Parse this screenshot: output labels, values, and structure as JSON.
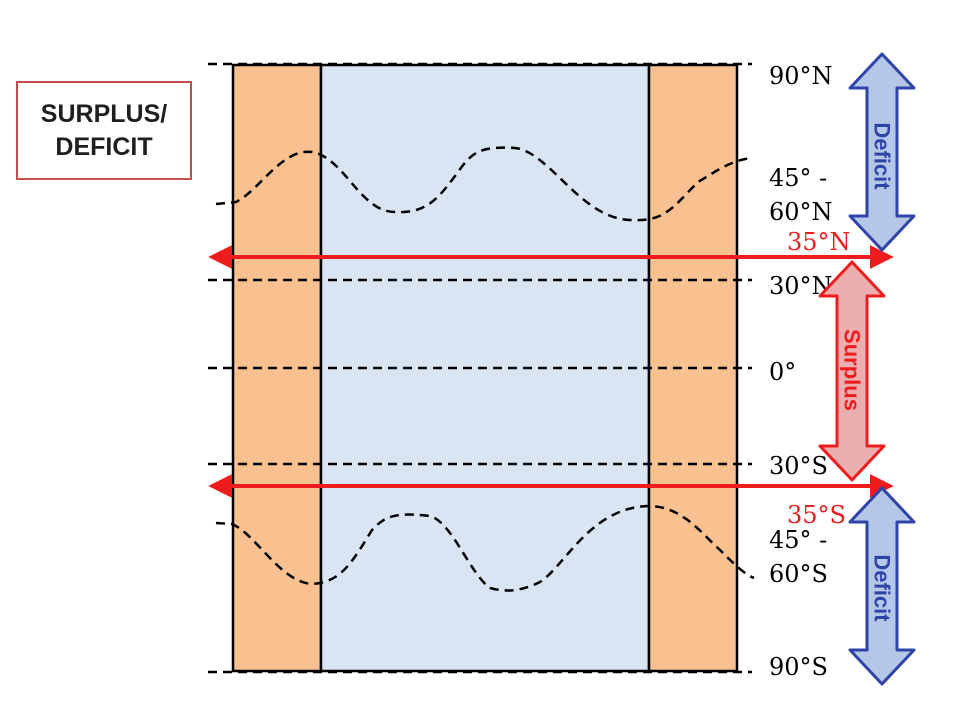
{
  "title": {
    "line1": "SURPLUS/",
    "line2": "DEFICIT"
  },
  "latitudes": {
    "n90": "90°N",
    "n45_60_line1": "45° -",
    "n45_60_line2": "60°N",
    "n35": "35°N",
    "n30": "30°N",
    "equator": "0°",
    "s30": "30°S",
    "s35": "35°S",
    "s45_60_line1": "45° -",
    "s45_60_line2": "60°S",
    "s90": "90°S"
  },
  "arrows": {
    "deficit_north": "Deficit",
    "surplus": "Surplus",
    "deficit_south": "Deficit"
  },
  "colors": {
    "land": "#f9c090",
    "ocean": "#dae5f3",
    "boundary": "#ee1c1c",
    "deficit_fill": "#b4c7e7",
    "deficit_stroke": "#2e44a8",
    "surplus_fill": "#ecaeae",
    "surplus_stroke": "#ee1c1c"
  }
}
